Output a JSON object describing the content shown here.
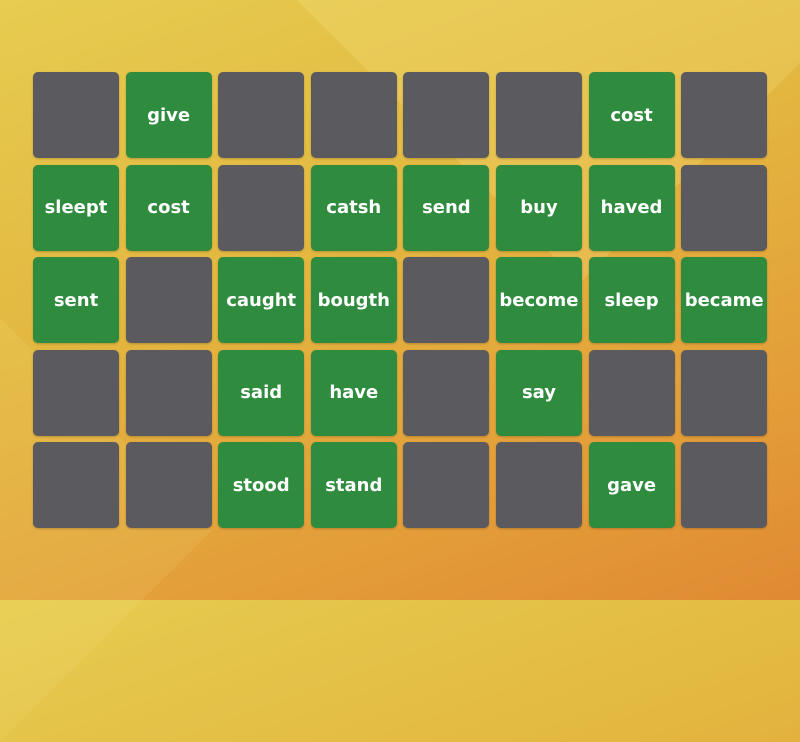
{
  "colors": {
    "face_down": "#5b5a5f",
    "face_up": "#2f8b3e",
    "text": "#ffffff"
  },
  "cards": [
    "",
    "give",
    "",
    "",
    "",
    "",
    "cost",
    "",
    "sleept",
    "cost",
    "",
    "catsh",
    "send",
    "buy",
    "haved",
    "",
    "sent",
    "",
    "caught",
    "bougth",
    "",
    "become",
    "sleep",
    "became",
    "",
    "",
    "said",
    "have",
    "",
    "say",
    "",
    "",
    "",
    "",
    "stood",
    "stand",
    "",
    "",
    "gave",
    ""
  ]
}
